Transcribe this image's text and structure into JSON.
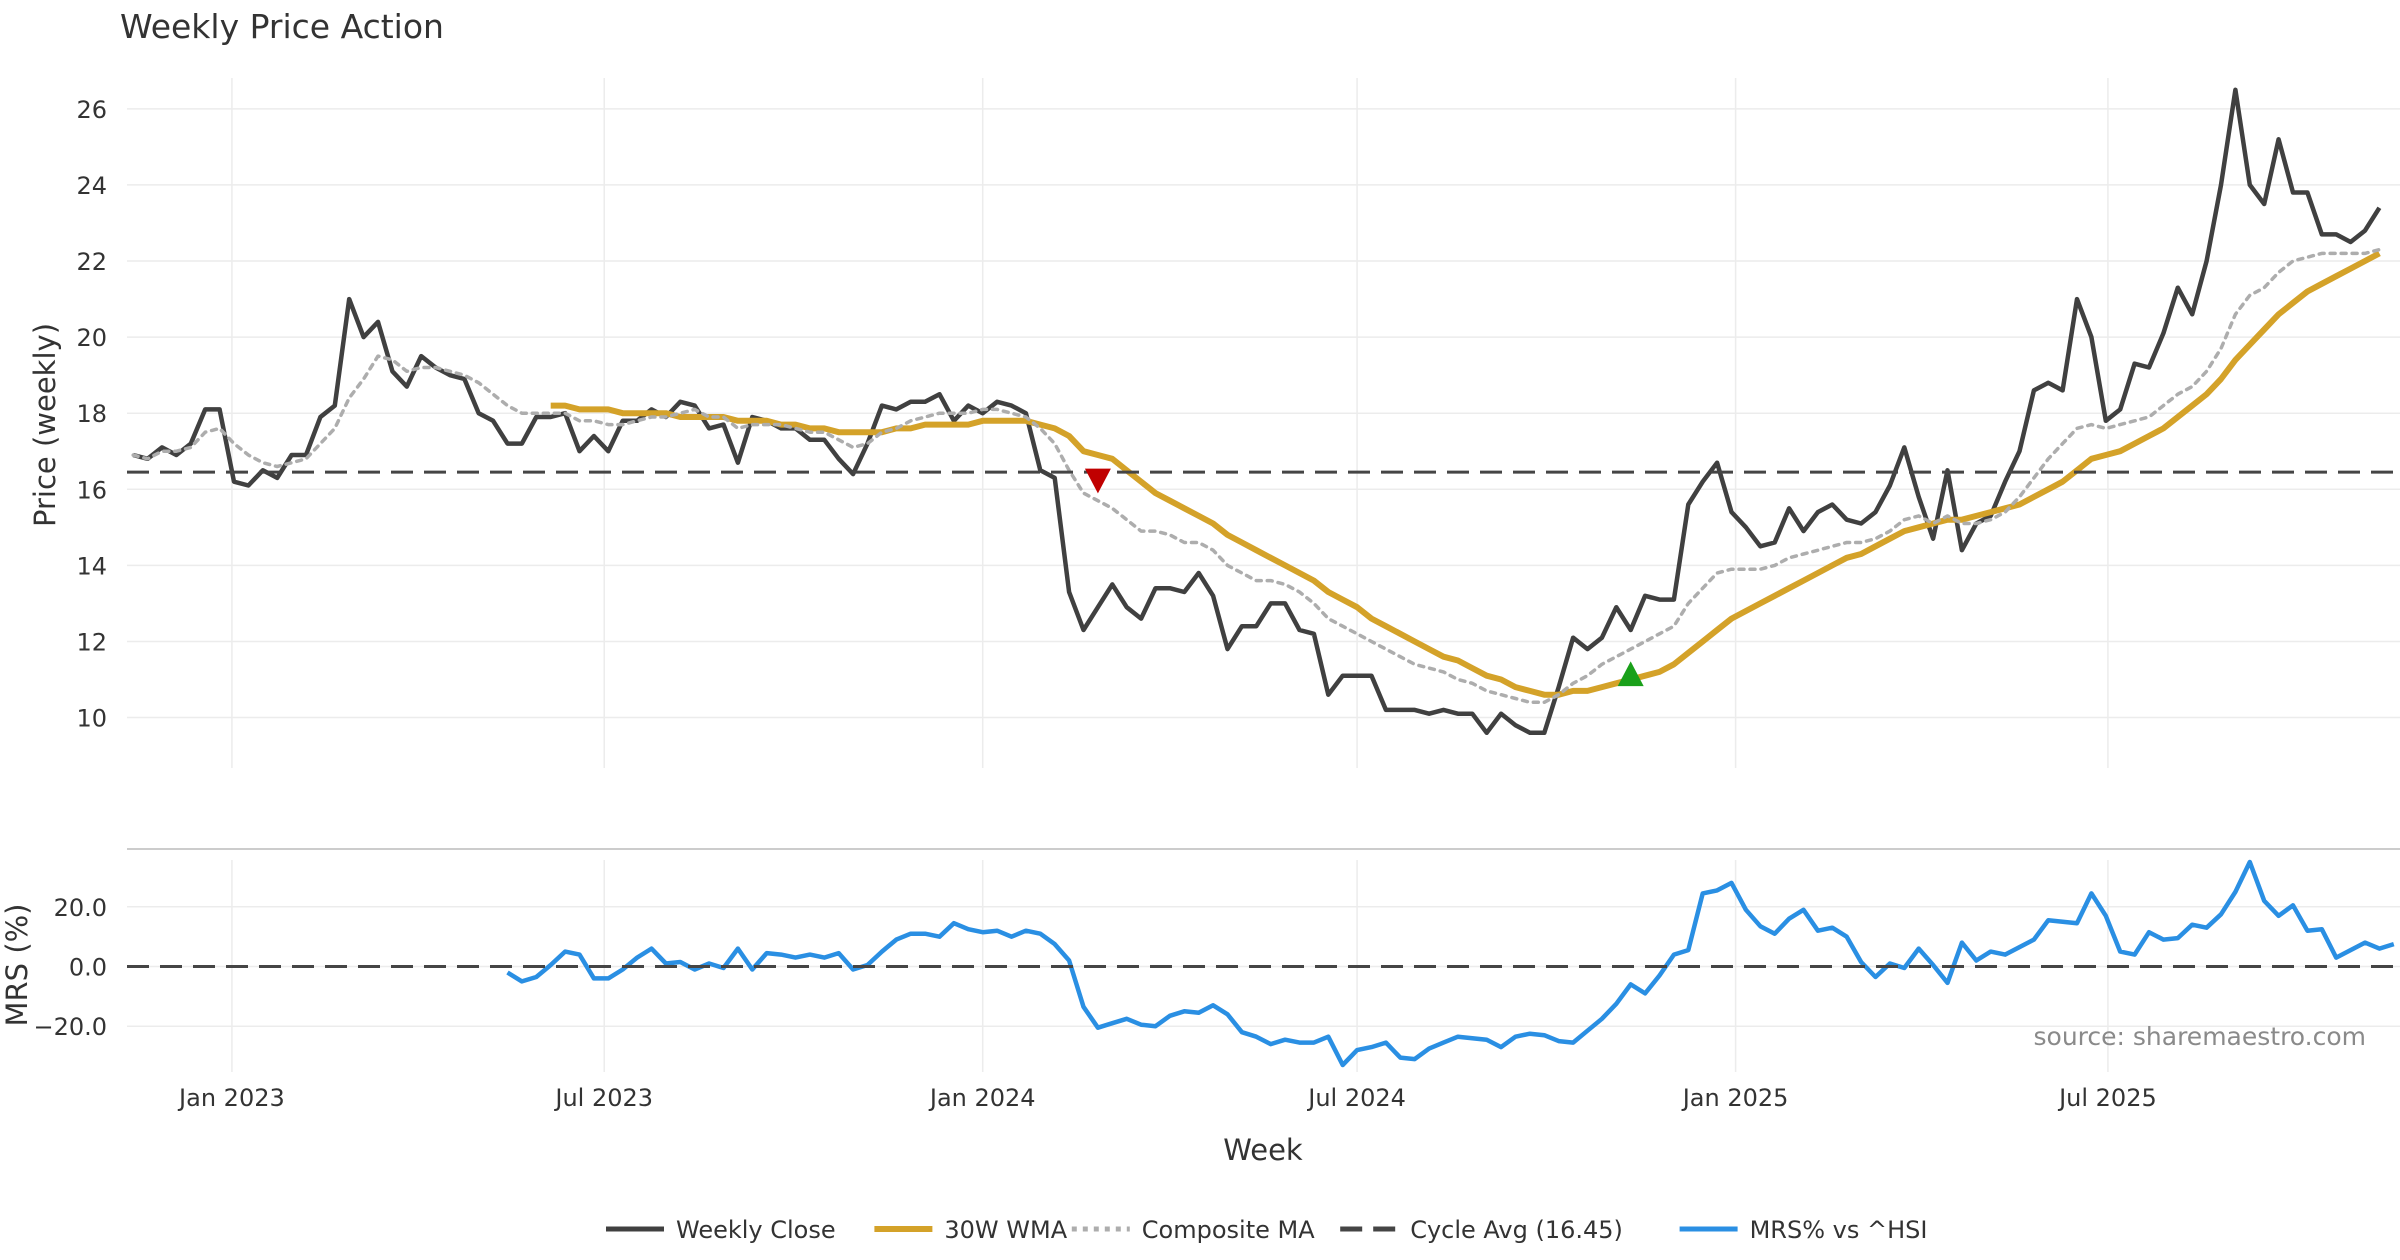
{
  "chart_data": [
    {
      "type": "line",
      "title": "Weekly Price Action",
      "ylabel": "Price (weekly)",
      "xlabel": "",
      "ylim": [
        8.7,
        27.1
      ],
      "yticks": [
        10,
        12,
        14,
        16,
        18,
        20,
        22,
        24,
        26
      ],
      "grid": true,
      "x_start": "2022-11-14",
      "x_step_days": 7,
      "series": [
        {
          "name": "Weekly Close",
          "color": "#404040",
          "style": "solid",
          "values": [
            16.9,
            16.8,
            17.1,
            16.9,
            17.2,
            18.1,
            18.1,
            16.2,
            16.1,
            16.5,
            16.3,
            16.9,
            16.9,
            17.9,
            18.2,
            21.0,
            20.0,
            20.4,
            19.1,
            18.7,
            19.5,
            19.2,
            19.0,
            18.9,
            18.0,
            17.8,
            17.2,
            17.2,
            17.9,
            17.9,
            18.0,
            17.0,
            17.4,
            17.0,
            17.8,
            17.8,
            18.1,
            17.9,
            18.3,
            18.2,
            17.6,
            17.7,
            16.7,
            17.9,
            17.8,
            17.6,
            17.6,
            17.3,
            17.3,
            16.8,
            16.4,
            17.2,
            18.2,
            18.1,
            18.3,
            18.3,
            18.5,
            17.8,
            18.2,
            18.0,
            18.3,
            18.2,
            18.0,
            16.5,
            16.3,
            13.3,
            12.3,
            12.9,
            13.5,
            12.9,
            12.6,
            13.4,
            13.4,
            13.3,
            13.8,
            13.2,
            11.8,
            12.4,
            12.4,
            13.0,
            13.0,
            12.3,
            12.2,
            10.6,
            11.1,
            11.1,
            11.1,
            10.2,
            10.2,
            10.2,
            10.1,
            10.2,
            10.1,
            10.1,
            9.6,
            10.1,
            9.8,
            9.6,
            9.6,
            10.8,
            12.1,
            11.8,
            12.1,
            12.9,
            12.3,
            13.2,
            13.1,
            13.1,
            15.6,
            16.2,
            16.7,
            15.4,
            15.0,
            14.5,
            14.6,
            15.5,
            14.9,
            15.4,
            15.6,
            15.2,
            15.1,
            15.4,
            16.1,
            17.1,
            15.8,
            14.7,
            16.5,
            14.4,
            15.1,
            15.3,
            16.2,
            17.0,
            18.6,
            18.8,
            18.6,
            21.0,
            20.0,
            17.8,
            18.1,
            19.3,
            19.2,
            20.1,
            21.3,
            20.6,
            22.0,
            24.0,
            26.5,
            24.0,
            23.5,
            25.2,
            23.8,
            23.8,
            22.7,
            22.7,
            22.5,
            22.8,
            23.4
          ]
        },
        {
          "name": "30W WMA",
          "color": "#d4a229",
          "style": "solid",
          "values": [
            null,
            null,
            null,
            null,
            null,
            null,
            null,
            null,
            null,
            null,
            null,
            null,
            null,
            null,
            null,
            null,
            null,
            null,
            null,
            null,
            null,
            null,
            null,
            null,
            null,
            null,
            null,
            null,
            null,
            18.2,
            18.2,
            18.1,
            18.1,
            18.1,
            18.0,
            18.0,
            18.0,
            18.0,
            17.9,
            17.9,
            17.9,
            17.9,
            17.8,
            17.8,
            17.8,
            17.7,
            17.7,
            17.6,
            17.6,
            17.5,
            17.5,
            17.5,
            17.5,
            17.6,
            17.6,
            17.7,
            17.7,
            17.7,
            17.7,
            17.8,
            17.8,
            17.8,
            17.8,
            17.7,
            17.6,
            17.4,
            17.0,
            16.9,
            16.8,
            16.5,
            16.2,
            15.9,
            15.7,
            15.5,
            15.3,
            15.1,
            14.8,
            14.6,
            14.4,
            14.2,
            14.0,
            13.8,
            13.6,
            13.3,
            13.1,
            12.9,
            12.6,
            12.4,
            12.2,
            12.0,
            11.8,
            11.6,
            11.5,
            11.3,
            11.1,
            11.0,
            10.8,
            10.7,
            10.6,
            10.6,
            10.7,
            10.7,
            10.8,
            10.9,
            11.0,
            11.1,
            11.2,
            11.4,
            11.7,
            12.0,
            12.3,
            12.6,
            12.8,
            13.0,
            13.2,
            13.4,
            13.6,
            13.8,
            14.0,
            14.2,
            14.3,
            14.5,
            14.7,
            14.9,
            15.0,
            15.1,
            15.2,
            15.2,
            15.3,
            15.4,
            15.5,
            15.6,
            15.8,
            16.0,
            16.2,
            16.5,
            16.8,
            16.9,
            17.0,
            17.2,
            17.4,
            17.6,
            17.9,
            18.2,
            18.5,
            18.9,
            19.4,
            19.8,
            20.2,
            20.6,
            20.9,
            21.2,
            21.4,
            21.6,
            21.8,
            22.0,
            22.2
          ]
        },
        {
          "name": "Composite MA",
          "color": "#adadad",
          "style": "dotted",
          "values": [
            16.9,
            16.8,
            17.0,
            17.0,
            17.1,
            17.5,
            17.6,
            17.2,
            16.9,
            16.7,
            16.6,
            16.7,
            16.8,
            17.2,
            17.6,
            18.4,
            18.9,
            19.5,
            19.4,
            19.1,
            19.2,
            19.2,
            19.1,
            19.0,
            18.8,
            18.5,
            18.2,
            18.0,
            18.0,
            18.0,
            18.0,
            17.8,
            17.8,
            17.7,
            17.7,
            17.8,
            17.9,
            17.9,
            18.0,
            18.1,
            17.9,
            17.9,
            17.6,
            17.7,
            17.7,
            17.7,
            17.6,
            17.5,
            17.5,
            17.3,
            17.1,
            17.2,
            17.5,
            17.6,
            17.8,
            17.9,
            18.0,
            18.0,
            18.0,
            18.1,
            18.1,
            18.0,
            17.9,
            17.6,
            17.2,
            16.5,
            15.9,
            15.7,
            15.5,
            15.2,
            14.9,
            14.9,
            14.8,
            14.6,
            14.6,
            14.4,
            14.0,
            13.8,
            13.6,
            13.6,
            13.5,
            13.3,
            13.0,
            12.6,
            12.4,
            12.2,
            12.0,
            11.8,
            11.6,
            11.4,
            11.3,
            11.2,
            11.0,
            10.9,
            10.7,
            10.6,
            10.5,
            10.4,
            10.4,
            10.6,
            10.9,
            11.1,
            11.4,
            11.6,
            11.8,
            12.0,
            12.2,
            12.4,
            13.0,
            13.4,
            13.8,
            13.9,
            13.9,
            13.9,
            14.0,
            14.2,
            14.3,
            14.4,
            14.5,
            14.6,
            14.6,
            14.7,
            14.9,
            15.2,
            15.3,
            15.1,
            15.3,
            15.1,
            15.1,
            15.2,
            15.4,
            15.8,
            16.3,
            16.8,
            17.2,
            17.6,
            17.7,
            17.6,
            17.7,
            17.8,
            17.9,
            18.2,
            18.5,
            18.7,
            19.1,
            19.7,
            20.6,
            21.1,
            21.3,
            21.7,
            22.0,
            22.1,
            22.2,
            22.2,
            22.2,
            22.2,
            22.3
          ]
        },
        {
          "name": "Cycle Avg (16.45)",
          "color": "#454545",
          "style": "dashed",
          "constant": 16.45
        }
      ],
      "markers": [
        {
          "type": "sell",
          "shape": "triangle-down",
          "color": "#c00000",
          "week_index": 67,
          "value": 16.2
        },
        {
          "type": "buy",
          "shape": "triangle-up",
          "color": "#1aa01a",
          "week_index": 104,
          "value": 11.1
        }
      ]
    },
    {
      "type": "line",
      "title": "",
      "ylabel": "MRS (%)",
      "xlabel": "Week",
      "ylim": [
        -35,
        34
      ],
      "yticks": [
        -20,
        0,
        20
      ],
      "ytick_labels": [
        "−20.0",
        "0.0",
        "20.0"
      ],
      "grid": true,
      "x_start": "2022-11-14",
      "x_step_days": 7,
      "series": [
        {
          "name": "MRS% vs ^HSI",
          "color": "#2a8fe3",
          "style": "solid",
          "values": [
            null,
            null,
            null,
            null,
            null,
            null,
            null,
            null,
            null,
            null,
            null,
            null,
            null,
            null,
            null,
            null,
            null,
            null,
            null,
            null,
            null,
            null,
            null,
            null,
            null,
            null,
            -2.0,
            -5.0,
            -3.5,
            0.5,
            5.0,
            4.0,
            -4.0,
            -4.0,
            -1.0,
            3.0,
            6.0,
            1.0,
            1.5,
            -1.0,
            1.0,
            -0.5,
            6.0,
            -1.0,
            4.5,
            4.0,
            3.0,
            4.0,
            3.0,
            4.5,
            -1.0,
            0.5,
            5.0,
            9.0,
            11.0,
            11.0,
            10.0,
            14.5,
            12.5,
            11.5,
            12.0,
            10.0,
            12.0,
            11.0,
            7.5,
            2.0,
            -13.5,
            -20.5,
            -19.0,
            -17.5,
            -19.5,
            -20.0,
            -16.5,
            -15.0,
            -15.5,
            -13.0,
            -16.0,
            -22.0,
            -23.5,
            -26.0,
            -24.5,
            -25.5,
            -25.5,
            -23.5,
            -33.0,
            -28.0,
            -27.0,
            -25.5,
            -30.5,
            -31.0,
            -27.5,
            -25.5,
            -23.5,
            -24.0,
            -24.5,
            -27.0,
            -23.5,
            -22.5,
            -23.0,
            -25.0,
            -25.5,
            -21.5,
            -17.5,
            -12.5,
            -6.0,
            -9.0,
            -3.0,
            4.0,
            5.5,
            24.5,
            25.5,
            28.0,
            19.0,
            13.5,
            11.0,
            16.0,
            19.0,
            12.0,
            13.0,
            10.0,
            1.5,
            -3.5,
            1.0,
            -0.5,
            6.0,
            0.5,
            -5.5,
            8.0,
            2.0,
            5.0,
            4.0,
            6.5,
            9.0,
            15.5,
            15.0,
            14.5,
            24.5,
            17.0,
            5.0,
            4.0,
            11.5,
            9.0,
            9.5,
            14.0,
            13.0,
            17.5,
            25.0,
            35.0,
            22.0,
            17.0,
            20.5,
            12.0,
            12.5,
            3.0,
            5.5,
            8.0,
            6.0,
            7.5
          ]
        },
        {
          "name": "zero",
          "color": "#454545",
          "style": "dashed",
          "constant": 0
        }
      ]
    }
  ],
  "x_axis": {
    "label": "Week",
    "ticks": [
      {
        "label": "Jan 2023",
        "date": "2023-01-01"
      },
      {
        "label": "Jul 2023",
        "date": "2023-07-01"
      },
      {
        "label": "Jan 2024",
        "date": "2024-01-01"
      },
      {
        "label": "Jul 2024",
        "date": "2024-07-01"
      },
      {
        "label": "Jan 2025",
        "date": "2025-01-01"
      },
      {
        "label": "Jul 2025",
        "date": "2025-07-01"
      }
    ],
    "range": [
      "2022-11-11",
      "2025-11-20"
    ]
  },
  "legend": {
    "placement": "bottom-center",
    "entries": [
      {
        "label": "Weekly Close",
        "color": "#404040",
        "style": "solid"
      },
      {
        "label": "30W WMA",
        "color": "#d4a229",
        "style": "solid"
      },
      {
        "label": "Composite MA",
        "color": "#adadad",
        "style": "dotted"
      },
      {
        "label": "Cycle Avg (16.45)",
        "color": "#454545",
        "style": "dashed"
      },
      {
        "label": "MRS% vs ^HSI",
        "color": "#2a8fe3",
        "style": "solid"
      }
    ]
  },
  "source_text": "source: sharemaestro.com"
}
